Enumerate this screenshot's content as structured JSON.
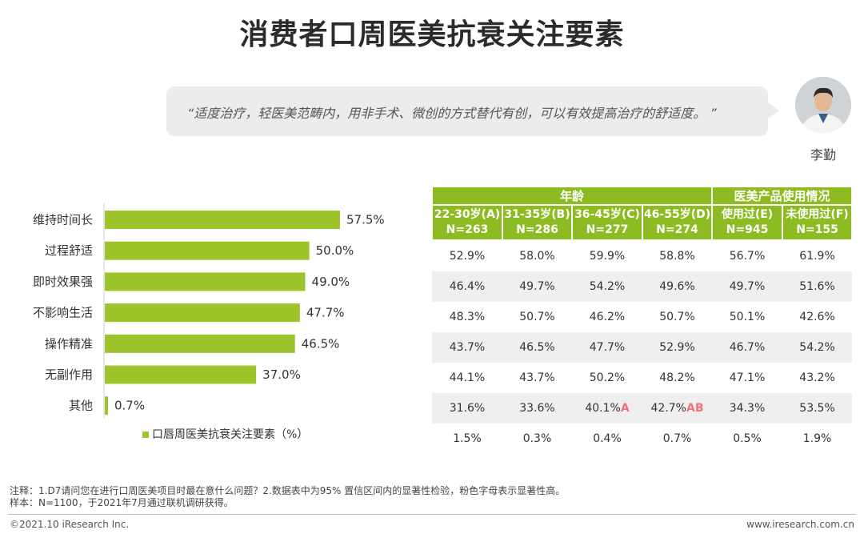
{
  "title": "消费者口周医美抗衰关注要素",
  "quote": "“适度治疗，轻医美范畴内，用非手术、微创的方式替代有创，可以有效提高治疗的舒适度。 ”",
  "person_name": "李勤",
  "notes": {
    "line1": "注释：1.D7请问您在进行口周医美项目时最在意什么问题？2.数据表中为95% 置信区间内的显著性检验，粉色字母表示显著性高。",
    "line2": "样本：N=1100，于2021年7月通过联机调研获得。"
  },
  "footer": {
    "copyright": "©2021.10 iResearch Inc.",
    "website": "www.iresearch.com.cn"
  },
  "colors": {
    "bar": "#9dc42a",
    "header": "#8cbc22",
    "significance": "#f0737a"
  },
  "chart_data": [
    {
      "type": "bar",
      "orientation": "horizontal",
      "categories": [
        "维持时间长",
        "过程舒适",
        "即时效果强",
        "不影响生活",
        "操作精准",
        "无副作用",
        "其他"
      ],
      "series": [
        {
          "name": "口唇周医美抗衰关注要素（%）",
          "values": [
            57.5,
            50.0,
            49.0,
            47.7,
            46.5,
            37.0,
            0.7
          ]
        }
      ],
      "value_labels": [
        "57.5%",
        "50.0%",
        "49.0%",
        "47.7%",
        "46.5%",
        "37.0%",
        "0.7%"
      ],
      "legend": "bottom",
      "grid": false
    },
    {
      "type": "table",
      "groups": [
        {
          "label": "年龄",
          "span": 4
        },
        {
          "label": "医美产品使用情况",
          "span": 2
        }
      ],
      "columns": [
        {
          "label": "22-30岁(A)",
          "n": "N=263"
        },
        {
          "label": "31-35岁(B)",
          "n": "N=286"
        },
        {
          "label": "36-45岁(C)",
          "n": "N=277"
        },
        {
          "label": "46-55岁(D)",
          "n": "N=274"
        },
        {
          "label": "使用过(E)",
          "n": "N=945"
        },
        {
          "label": "未使用过(F)",
          "n": "N=155"
        }
      ],
      "rows": [
        [
          {
            "v": "52.9%"
          },
          {
            "v": "58.0%"
          },
          {
            "v": "59.9%"
          },
          {
            "v": "58.8%"
          },
          {
            "v": "56.7%"
          },
          {
            "v": "61.9%"
          }
        ],
        [
          {
            "v": "46.4%"
          },
          {
            "v": "49.7%"
          },
          {
            "v": "54.2%"
          },
          {
            "v": "49.6%"
          },
          {
            "v": "49.7%"
          },
          {
            "v": "51.6%"
          }
        ],
        [
          {
            "v": "48.3%"
          },
          {
            "v": "50.7%"
          },
          {
            "v": "46.2%"
          },
          {
            "v": "50.7%"
          },
          {
            "v": "50.1%"
          },
          {
            "v": "42.6%"
          }
        ],
        [
          {
            "v": "43.7%"
          },
          {
            "v": "46.5%"
          },
          {
            "v": "47.7%"
          },
          {
            "v": "52.9%"
          },
          {
            "v": "46.7%"
          },
          {
            "v": "54.2%"
          }
        ],
        [
          {
            "v": "44.1%"
          },
          {
            "v": "43.7%"
          },
          {
            "v": "50.2%"
          },
          {
            "v": "48.2%"
          },
          {
            "v": "47.1%"
          },
          {
            "v": "43.2%"
          }
        ],
        [
          {
            "v": "31.6%"
          },
          {
            "v": "33.6%"
          },
          {
            "v": "40.1%",
            "sig": "A"
          },
          {
            "v": "42.7%",
            "sig": "AB"
          },
          {
            "v": "34.3%"
          },
          {
            "v": "53.5%"
          }
        ],
        [
          {
            "v": "1.5%"
          },
          {
            "v": "0.3%"
          },
          {
            "v": "0.4%"
          },
          {
            "v": "0.7%"
          },
          {
            "v": "0.5%"
          },
          {
            "v": "1.9%"
          }
        ]
      ]
    }
  ]
}
